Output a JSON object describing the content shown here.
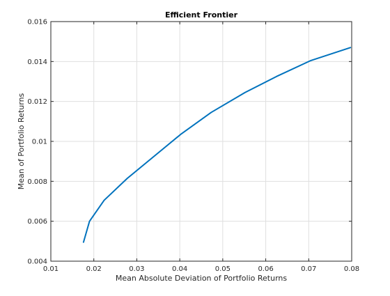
{
  "chart_data": {
    "type": "line",
    "title": "Efficient Frontier",
    "xlabel": "Mean Absolute Deviation of Portfolio Returns",
    "ylabel": "Mean of Portfolio Returns",
    "xlim": [
      0.01,
      0.08
    ],
    "ylim": [
      0.004,
      0.016
    ],
    "xticks": [
      0.01,
      0.02,
      0.03,
      0.04,
      0.05,
      0.06,
      0.07,
      0.08
    ],
    "xtick_labels": [
      "0.01",
      "0.02",
      "0.03",
      "0.04",
      "0.05",
      "0.06",
      "0.07",
      "0.08"
    ],
    "yticks": [
      0.004,
      0.006,
      0.008,
      0.01,
      0.012,
      0.014,
      0.016
    ],
    "ytick_labels": [
      "0.004",
      "0.006",
      "0.008",
      "0.01",
      "0.012",
      "0.014",
      "0.016"
    ],
    "grid": true,
    "series": [
      {
        "color": "#0072bd",
        "x": [
          0.0176,
          0.019,
          0.0224,
          0.0278,
          0.034,
          0.0402,
          0.0473,
          0.0552,
          0.0625,
          0.0705,
          0.0797
        ],
        "y": [
          0.00495,
          0.006,
          0.00705,
          0.00815,
          0.00925,
          0.01035,
          0.01145,
          0.01245,
          0.01325,
          0.01405,
          0.0147
        ]
      }
    ]
  }
}
